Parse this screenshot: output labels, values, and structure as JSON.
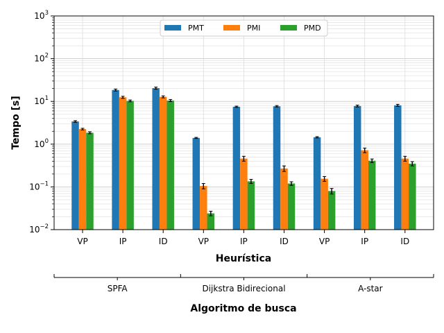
{
  "chart_data": {
    "type": "bar",
    "title": "",
    "xlabel": "Heurística",
    "ylabel": "Tempo [s]",
    "secondary_xlabel": "Algoritmo de busca",
    "yscale": "log",
    "ylim": [
      0.01,
      1000
    ],
    "grid": true,
    "legend_position": "top-center",
    "groups": [
      "SPFA",
      "Dijkstra Bidirecional",
      "A-star"
    ],
    "categories": [
      "VP",
      "IP",
      "ID",
      "VP",
      "IP",
      "ID",
      "VP",
      "IP",
      "ID"
    ],
    "series": [
      {
        "name": "PMT",
        "color": "#1f77b4",
        "values": [
          3.4,
          18.5,
          20.5,
          1.4,
          7.5,
          7.7,
          1.45,
          7.8,
          8.1
        ],
        "errors": [
          0.15,
          1.0,
          1.2,
          0.04,
          0.25,
          0.3,
          0.05,
          0.4,
          0.45
        ]
      },
      {
        "name": "PMI",
        "color": "#ff7f0e",
        "values": [
          2.25,
          12.5,
          12.8,
          0.105,
          0.46,
          0.27,
          0.155,
          0.72,
          0.46
        ],
        "errors": [
          0.1,
          0.7,
          0.7,
          0.015,
          0.06,
          0.04,
          0.02,
          0.09,
          0.06
        ]
      },
      {
        "name": "PMD",
        "color": "#2ca02c",
        "values": [
          1.85,
          10.3,
          10.5,
          0.024,
          0.135,
          0.12,
          0.08,
          0.41,
          0.35
        ],
        "errors": [
          0.1,
          0.5,
          0.6,
          0.003,
          0.015,
          0.012,
          0.012,
          0.04,
          0.04
        ]
      }
    ],
    "yticks": [
      {
        "base": "10",
        "exp": "−2"
      },
      {
        "base": "10",
        "exp": "−1"
      },
      {
        "base": "10",
        "exp": "0"
      },
      {
        "base": "10",
        "exp": "1"
      },
      {
        "base": "10",
        "exp": "2"
      },
      {
        "base": "10",
        "exp": "3"
      }
    ]
  }
}
